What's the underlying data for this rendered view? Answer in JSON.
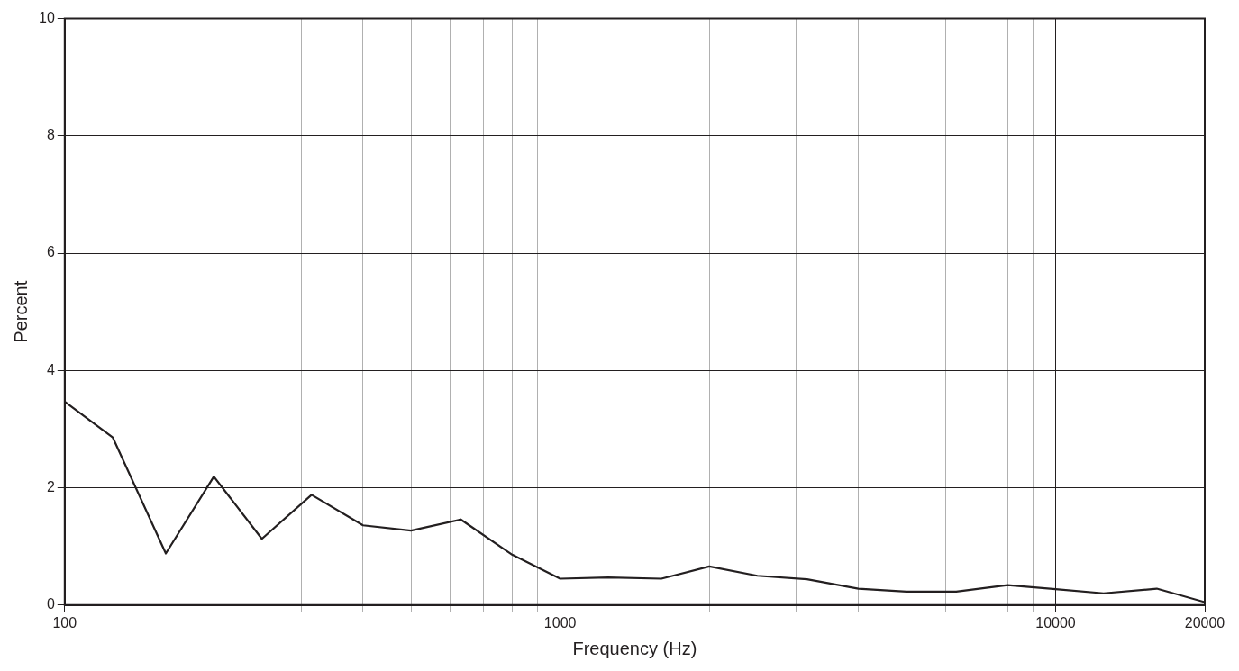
{
  "chart_data": {
    "type": "line",
    "xlabel": "Frequency (Hz)",
    "ylabel": "Percent",
    "x": [
      100,
      125,
      160,
      200,
      250,
      315,
      400,
      500,
      630,
      800,
      1000,
      1250,
      1600,
      2000,
      2500,
      3150,
      4000,
      5000,
      6300,
      8000,
      10000,
      12500,
      16000,
      20000
    ],
    "series": [
      {
        "color": "#231f20",
        "values": [
          3.47,
          2.86,
          0.88,
          2.19,
          1.13,
          1.88,
          1.36,
          1.27,
          1.46,
          0.86,
          0.45,
          0.47,
          0.45,
          0.66,
          0.5,
          0.44,
          0.28,
          0.23,
          0.23,
          0.34,
          0.27,
          0.2,
          0.28,
          0.05
        ]
      }
    ],
    "log": "x",
    "xlim": [
      100,
      20000
    ],
    "ylim": [
      0,
      10
    ],
    "xticks": [
      100,
      {
        "value": 200,
        "label": null
      },
      {
        "value": 300,
        "label": null
      },
      {
        "value": 400,
        "label": null
      },
      {
        "value": 500,
        "label": null
      },
      {
        "value": 600,
        "label": null
      },
      {
        "value": 700,
        "label": null
      },
      {
        "value": 800,
        "label": null
      },
      {
        "value": 900,
        "label": null
      },
      1000,
      {
        "value": 2000,
        "label": null
      },
      {
        "value": 3000,
        "label": null
      },
      {
        "value": 4000,
        "label": null
      },
      {
        "value": 5000,
        "label": null
      },
      {
        "value": 6000,
        "label": null
      },
      {
        "value": 7000,
        "label": null
      },
      {
        "value": 8000,
        "label": null
      },
      {
        "value": 9000,
        "label": null
      },
      10000,
      20000
    ],
    "yticks": [
      0,
      2,
      4,
      6,
      8,
      10
    ],
    "grid": true,
    "legend": false,
    "marker": "none",
    "line_style": "solid"
  }
}
